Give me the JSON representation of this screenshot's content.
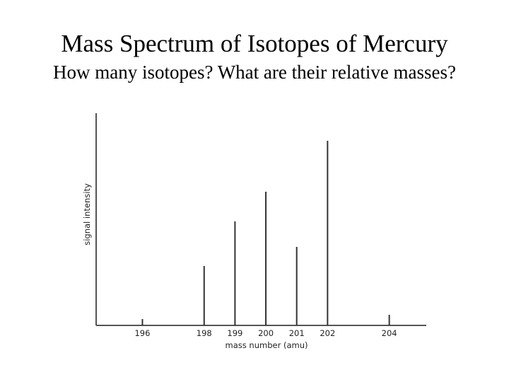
{
  "slide": {
    "title": "Mass Spectrum of Isotopes of Mercury",
    "subtitle": "How many isotopes? What are their relative masses?"
  },
  "colors": {
    "axis": "#555555",
    "peak": "#333333",
    "text": "#222222"
  },
  "chart_data": {
    "type": "bar",
    "title": "",
    "xlabel": "mass number (amu)",
    "ylabel": "signal intensity",
    "x_ticks": [
      196,
      198,
      199,
      200,
      201,
      202,
      204
    ],
    "xlim": [
      194.5,
      205.2
    ],
    "ylim": [
      0,
      1
    ],
    "grid": false,
    "legend": "none",
    "series": [
      {
        "x": [
          196,
          198,
          199,
          200,
          201,
          202,
          204
        ],
        "values": [
          0.03,
          0.28,
          0.49,
          0.63,
          0.37,
          0.87,
          0.05
        ]
      }
    ]
  }
}
